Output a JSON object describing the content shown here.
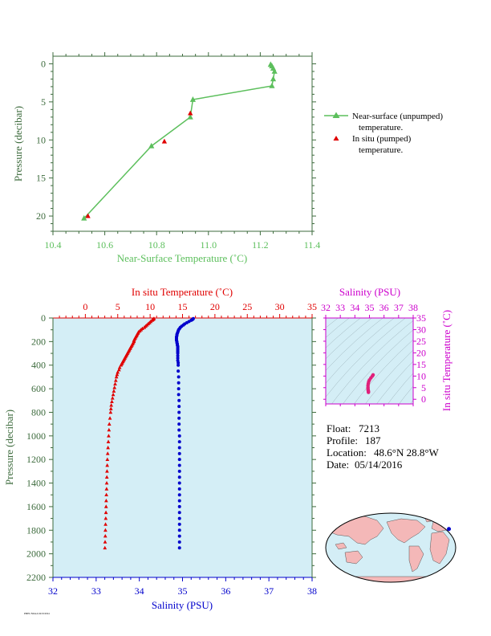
{
  "colors": {
    "green": "#5cbf5c",
    "axis_green": "#3d6b3d",
    "red": "#e00000",
    "blue": "#0000cc",
    "magenta": "#cc00cc",
    "panel_bg": "#d4eef6",
    "land": "#f4b8b8"
  },
  "float_info": {
    "float_label": "Float:",
    "float": "7213",
    "profile_label": "Profile:",
    "profile": "187",
    "location_label": "Location:",
    "location": "48.6°N  28.8°W",
    "date_label": "Date:",
    "date": "05/14/2016"
  },
  "footer_note": "PMEL/NOAA  04/19/2024",
  "chart_data": [
    {
      "type": "line",
      "id": "near-surface",
      "xlabel": "Near-Surface Temperature (˚C)",
      "ylabel": "Pressure (decibar)",
      "xlim": [
        10.4,
        11.4
      ],
      "ylim": [
        22,
        -1
      ],
      "xticks": [
        "10.4",
        "10.6",
        "10.8",
        "11.0",
        "11.2",
        "11.4"
      ],
      "yticks": [
        "0",
        "5",
        "10",
        "15",
        "20"
      ],
      "grid": false,
      "legend_position": "right",
      "series": [
        {
          "name": "Near-surface (unpumped) temperature.",
          "marker": "triangle",
          "x": [
            11.24,
            11.245,
            11.25,
            11.255,
            11.25,
            11.245,
            10.94,
            10.93,
            10.78,
            10.52
          ],
          "y": [
            0.1,
            0.3,
            0.6,
            1.0,
            2.0,
            2.9,
            4.7,
            7.0,
            10.8,
            20.3
          ]
        },
        {
          "name": "In situ (pumped) temperature.",
          "marker": "triangle",
          "x": [
            10.93,
            10.83,
            10.535
          ],
          "y": [
            6.5,
            10.2,
            20.0
          ]
        }
      ]
    },
    {
      "type": "scatter",
      "id": "profile",
      "ylabel": "Pressure (decibar)",
      "ylim": [
        2200,
        0
      ],
      "yticks": [
        "0",
        "200",
        "400",
        "600",
        "800",
        "1000",
        "1200",
        "1400",
        "1600",
        "1800",
        "2000",
        "2200"
      ],
      "top_axis": {
        "label": "In situ Temperature (˚C)",
        "lim": [
          -5,
          35
        ],
        "ticks": [
          "0",
          "5",
          "10",
          "15",
          "20",
          "25",
          "30",
          "35"
        ]
      },
      "bottom_axis": {
        "label": "Salinity (PSU)",
        "lim": [
          32,
          38
        ],
        "ticks": [
          "32",
          "33",
          "34",
          "35",
          "36",
          "37",
          "38"
        ]
      },
      "temperature": {
        "pressure": [
          5,
          10,
          15,
          20,
          30,
          40,
          50,
          60,
          70,
          80,
          90,
          100,
          110,
          120,
          130,
          140,
          150,
          160,
          170,
          180,
          190,
          200,
          210,
          220,
          230,
          240,
          250,
          260,
          270,
          280,
          290,
          300,
          310,
          320,
          330,
          340,
          350,
          360,
          370,
          380,
          390,
          400,
          420,
          440,
          460,
          480,
          500,
          530,
          560,
          590,
          620,
          650,
          680,
          710,
          740,
          770,
          800,
          850,
          900,
          950,
          1000,
          1050,
          1100,
          1150,
          1200,
          1250,
          1300,
          1350,
          1400,
          1450,
          1500,
          1550,
          1600,
          1650,
          1700,
          1750,
          1800,
          1850,
          1900,
          1950
        ],
        "values": [
          10.6,
          10.5,
          10.4,
          10.3,
          10.1,
          9.9,
          9.7,
          9.5,
          9.3,
          9.1,
          8.8,
          8.6,
          8.4,
          8.2,
          8.1,
          8.0,
          7.9,
          7.8,
          7.7,
          7.6,
          7.5,
          7.5,
          7.4,
          7.3,
          7.2,
          7.1,
          7.0,
          6.9,
          6.8,
          6.7,
          6.6,
          6.5,
          6.4,
          6.3,
          6.2,
          6.1,
          6.0,
          5.9,
          5.8,
          5.7,
          5.6,
          5.5,
          5.3,
          5.2,
          5.0,
          4.9,
          4.8,
          4.7,
          4.6,
          4.5,
          4.4,
          4.3,
          4.2,
          4.1,
          4.0,
          3.95,
          3.9,
          3.8,
          3.7,
          3.65,
          3.6,
          3.55,
          3.5,
          3.45,
          3.4,
          3.38,
          3.35,
          3.32,
          3.3,
          3.28,
          3.25,
          3.22,
          3.2,
          3.18,
          3.15,
          3.12,
          3.1,
          3.08,
          3.05,
          3.02
        ]
      },
      "salinity": {
        "pressure": [
          5,
          10,
          15,
          20,
          30,
          40,
          50,
          60,
          70,
          80,
          90,
          100,
          110,
          120,
          130,
          140,
          150,
          160,
          170,
          180,
          190,
          200,
          210,
          220,
          230,
          240,
          250,
          260,
          270,
          280,
          290,
          300,
          320,
          340,
          360,
          380,
          400,
          450,
          500,
          550,
          600,
          650,
          700,
          750,
          800,
          850,
          900,
          950,
          1000,
          1050,
          1100,
          1150,
          1200,
          1250,
          1300,
          1350,
          1400,
          1450,
          1500,
          1550,
          1600,
          1650,
          1700,
          1750,
          1800,
          1850,
          1900,
          1950
        ],
        "values": [
          35.25,
          35.24,
          35.22,
          35.2,
          35.15,
          35.1,
          35.05,
          35.02,
          34.98,
          34.95,
          34.93,
          34.91,
          34.9,
          34.89,
          34.88,
          34.87,
          34.87,
          34.86,
          34.86,
          34.86,
          34.86,
          34.87,
          34.87,
          34.88,
          34.88,
          34.89,
          34.89,
          34.89,
          34.89,
          34.89,
          34.89,
          34.89,
          34.89,
          34.89,
          34.89,
          34.9,
          34.9,
          34.9,
          34.91,
          34.91,
          34.91,
          34.91,
          34.92,
          34.92,
          34.92,
          34.92,
          34.92,
          34.92,
          34.93,
          34.93,
          34.93,
          34.93,
          34.93,
          34.93,
          34.93,
          34.93,
          34.93,
          34.93,
          34.93,
          34.93,
          34.93,
          34.93,
          34.93,
          34.93,
          34.93,
          34.93,
          34.93,
          34.93
        ]
      }
    },
    {
      "type": "scatter",
      "id": "ts-diagram",
      "xlabel": "Salinity (PSU)",
      "ylabel": "In situ Temperature (˚C)",
      "xlim": [
        32,
        38
      ],
      "ylim": [
        -2,
        35
      ],
      "xticks": [
        "32",
        "33",
        "34",
        "35",
        "36",
        "37",
        "38"
      ],
      "yticks": [
        "0",
        "5",
        "10",
        "15",
        "20",
        "25",
        "30",
        "35"
      ],
      "points": {
        "salinity": [
          35.25,
          35.2,
          35.1,
          35.0,
          34.95,
          34.92,
          34.9,
          34.9,
          34.9,
          34.91,
          34.92,
          34.93,
          34.93
        ],
        "temperature": [
          10.5,
          10.0,
          9.2,
          8.3,
          7.6,
          6.8,
          6.0,
          5.2,
          4.6,
          4.0,
          3.6,
          3.3,
          3.0
        ]
      }
    }
  ],
  "map": {
    "float_lon": -28.8,
    "float_lat": 48.6
  }
}
